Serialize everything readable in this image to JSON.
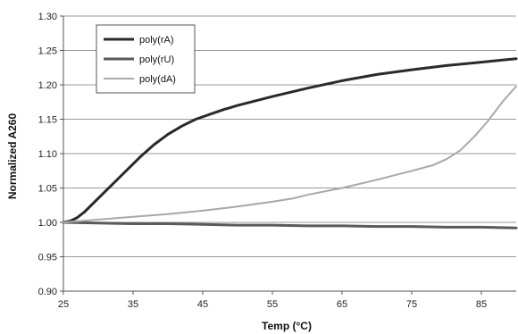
{
  "chart_data": {
    "type": "line",
    "title": "",
    "xlabel": "Temp (°C)",
    "ylabel": "Normalized A260",
    "xlim": [
      25,
      90
    ],
    "ylim": [
      0.9,
      1.3
    ],
    "x_ticks": [
      25,
      35,
      45,
      55,
      65,
      75,
      85
    ],
    "y_ticks": [
      0.9,
      0.95,
      1.0,
      1.05,
      1.1,
      1.15,
      1.2,
      1.25,
      1.3
    ],
    "x_tick_labels": [
      "25",
      "35",
      "45",
      "55",
      "65",
      "75",
      "85"
    ],
    "y_tick_labels": [
      "0.90",
      "0.95",
      "1.00",
      "1.05",
      "1.10",
      "1.15",
      "1.20",
      "1.25",
      "1.30"
    ],
    "grid": "horizontal",
    "legend_position": "top-left",
    "series": [
      {
        "name": "poly(rA)",
        "color": "#2a2a2a",
        "line_style": "thick",
        "x": [
          25,
          26,
          27,
          28,
          30,
          32,
          34,
          36,
          38,
          40,
          42,
          44,
          46,
          48,
          50,
          55,
          60,
          65,
          70,
          75,
          80,
          85,
          88,
          90
        ],
        "y": [
          1.0,
          1.002,
          1.007,
          1.015,
          1.035,
          1.055,
          1.075,
          1.095,
          1.113,
          1.128,
          1.14,
          1.15,
          1.157,
          1.164,
          1.17,
          1.183,
          1.195,
          1.206,
          1.215,
          1.222,
          1.228,
          1.233,
          1.236,
          1.238
        ]
      },
      {
        "name": "poly(rU)",
        "color": "#5a5a5a",
        "line_style": "thick",
        "x": [
          25,
          30,
          35,
          40,
          45,
          50,
          55,
          60,
          65,
          70,
          75,
          80,
          85,
          90
        ],
        "y": [
          1.0,
          0.999,
          0.998,
          0.998,
          0.997,
          0.996,
          0.996,
          0.995,
          0.995,
          0.994,
          0.994,
          0.993,
          0.993,
          0.992
        ]
      },
      {
        "name": "poly(dA)",
        "color": "#a8a8a8",
        "line_style": "thin",
        "x": [
          25,
          30,
          35,
          40,
          45,
          50,
          55,
          58,
          60,
          65,
          70,
          75,
          78,
          80,
          82,
          84,
          86,
          88,
          90
        ],
        "y": [
          1.0,
          1.004,
          1.008,
          1.012,
          1.017,
          1.023,
          1.03,
          1.035,
          1.04,
          1.05,
          1.062,
          1.075,
          1.083,
          1.092,
          1.105,
          1.125,
          1.148,
          1.175,
          1.198
        ]
      }
    ]
  }
}
